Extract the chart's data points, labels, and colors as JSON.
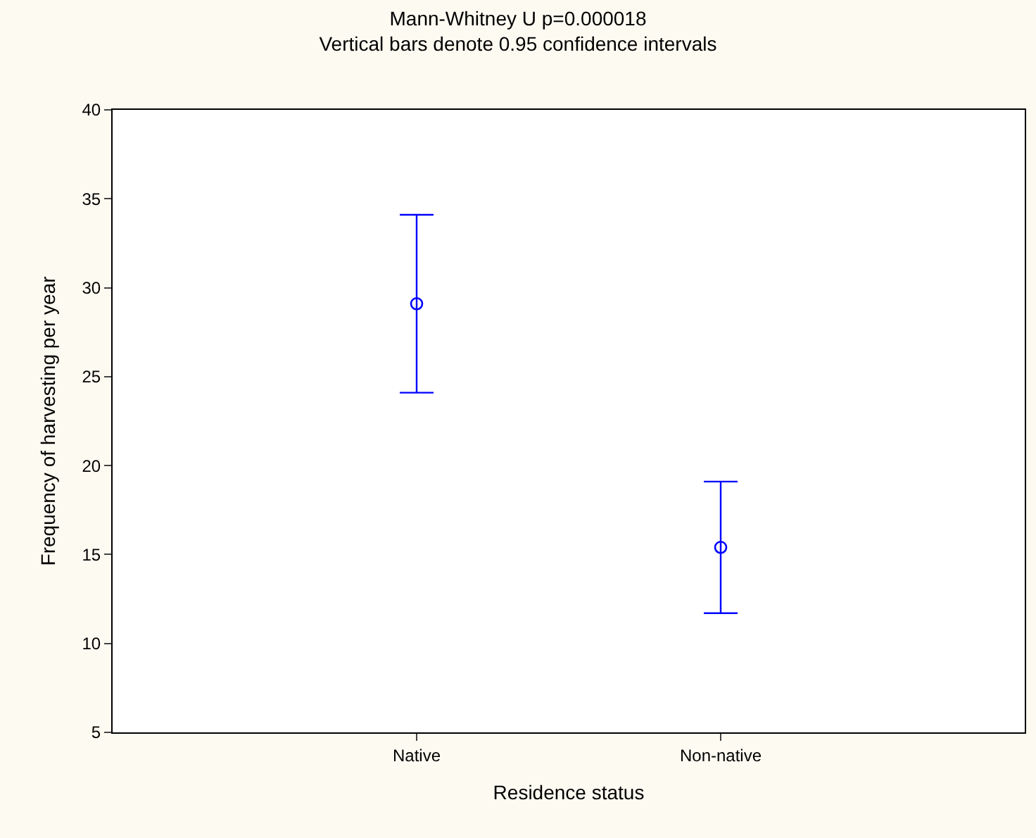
{
  "chart_data": {
    "type": "scatter",
    "title": "Mann-Whitney U p=0.000018",
    "subtitle": "Vertical bars denote 0.95 confidence intervals",
    "xlabel": "Residence status",
    "ylabel": "Frequency of harvesting per year",
    "categories": [
      "Native",
      "Non-native"
    ],
    "series": [
      {
        "color": "#0000ff",
        "values": [
          29.1,
          15.4
        ],
        "errors": [
          5.0,
          3.7
        ]
      }
    ],
    "ylim": [
      5,
      40
    ],
    "yticks": [
      5,
      10,
      15,
      20,
      25,
      30,
      35,
      40
    ],
    "marker": "circle"
  }
}
